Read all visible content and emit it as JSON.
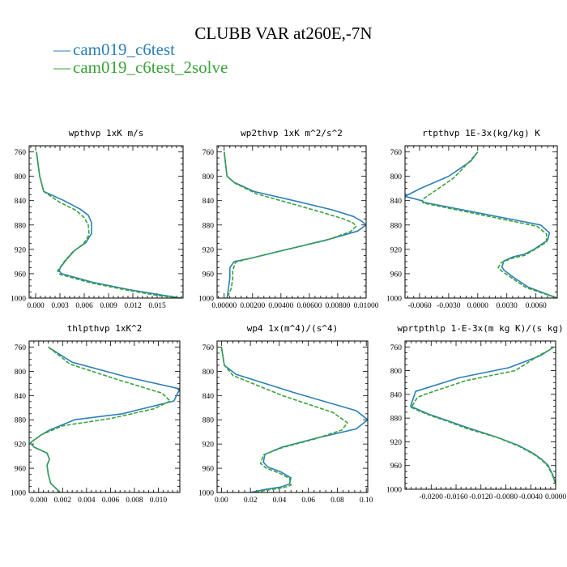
{
  "figure": {
    "title": "CLUBB VAR at260E,-7N",
    "legend": [
      {
        "name": "cam019_c6test",
        "color": "#2c7fb8"
      },
      {
        "name": "cam019_c6test_2solve",
        "color": "#3aa33a"
      }
    ]
  },
  "chart_data": [
    {
      "type": "line",
      "title": "wpthvp  1xK m/s",
      "ylim": [
        1000,
        750
      ],
      "xlim": [
        -0.0008,
        0.0182
      ],
      "y_ticks": [
        760,
        800,
        840,
        880,
        920,
        960,
        1000
      ],
      "x_ticks": [
        0.0,
        0.003,
        0.006,
        0.009,
        0.012,
        0.015
      ],
      "x_tick_labels": [
        "0.000",
        "0.003",
        "0.006",
        "0.009",
        "0.012",
        "0.015"
      ],
      "series": [
        {
          "name": "cam019_c6test",
          "x": [
            0.0001,
            0.0002,
            0.0003,
            0.0005,
            0.001,
            0.0035,
            0.0055,
            0.0065,
            0.0069,
            0.0069,
            0.0062,
            0.0048,
            0.0038,
            0.0031,
            0.0029,
            0.0032,
            0.007,
            0.0115,
            0.0155,
            0.018
          ],
          "y": [
            760,
            770,
            780,
            800,
            825,
            840,
            854,
            864,
            876,
            894,
            909,
            922,
            937,
            949,
            955,
            960,
            974,
            986,
            995,
            1000
          ]
        },
        {
          "name": "cam019_c6test_2solve",
          "x": [
            0.0001,
            0.0002,
            0.0003,
            0.0005,
            0.001,
            0.003,
            0.005,
            0.006,
            0.0065,
            0.0066,
            0.0059,
            0.0046,
            0.0036,
            0.003,
            0.0027,
            0.003,
            0.0068,
            0.0113,
            0.0152,
            0.018
          ],
          "y": [
            760,
            770,
            780,
            800,
            825,
            843,
            856,
            868,
            880,
            896,
            911,
            924,
            939,
            950,
            955,
            961,
            975,
            987,
            996,
            1000
          ]
        }
      ]
    },
    {
      "type": "line",
      "title": "wp2thvp  1xK m^2/s^2",
      "ylim": [
        1000,
        750
      ],
      "xlim": [
        -0.0005,
        0.01
      ],
      "y_ticks": [
        760,
        800,
        840,
        880,
        920,
        960,
        1000
      ],
      "x_ticks": [
        0.0,
        0.002,
        0.004,
        0.006,
        0.008,
        0.01
      ],
      "x_tick_labels": [
        "0.00000",
        "0.00200",
        "0.00400",
        "0.00600",
        "0.00800",
        "0.01000"
      ],
      "series": [
        {
          "name": "cam019_c6test",
          "x": [
            0.0,
            0.0001,
            0.0002,
            0.0007,
            0.0021,
            0.0049,
            0.0076,
            0.0091,
            0.0097,
            0.01,
            0.0094,
            0.0073,
            0.0041,
            0.0018,
            0.0007,
            0.0004,
            0.0004,
            0.0003,
            0.0002
          ],
          "y": [
            760,
            780,
            800,
            810,
            825,
            840,
            855,
            866,
            874,
            880,
            890,
            904,
            922,
            935,
            940,
            950,
            966,
            985,
            1000
          ]
        },
        {
          "name": "cam019_c6test_2solve",
          "x": [
            0.0,
            0.0001,
            0.0002,
            0.0008,
            0.0023,
            0.0046,
            0.007,
            0.0084,
            0.0091,
            0.0093,
            0.0089,
            0.0072,
            0.0041,
            0.0018,
            0.0008,
            0.0006,
            0.0006,
            0.0005,
            0.0002
          ],
          "y": [
            760,
            780,
            800,
            812,
            829,
            844,
            860,
            870,
            877,
            882,
            891,
            905,
            922,
            935,
            941,
            955,
            968,
            984,
            1000
          ]
        }
      ]
    },
    {
      "type": "line",
      "title": "rtpthvp  1E-3x(kg/kg) K",
      "ylim": [
        1000,
        750
      ],
      "xlim": [
        -0.0075,
        0.0082
      ],
      "y_ticks": [
        760,
        800,
        840,
        880,
        920,
        960,
        1000
      ],
      "x_ticks": [
        -0.006,
        -0.003,
        0.0,
        0.003,
        0.006
      ],
      "x_tick_labels": [
        "-0.0060",
        "-0.0030",
        "0.0000",
        "0.0030",
        "0.0060"
      ],
      "series": [
        {
          "name": "cam019_c6test",
          "x": [
            0.0,
            -0.0007,
            -0.003,
            -0.0059,
            -0.0075,
            -0.0058,
            -0.0055,
            0.0065,
            0.0074,
            0.0072,
            0.0058,
            0.0048,
            0.0037,
            0.0027,
            0.0025,
            0.0027,
            0.0036,
            0.0052,
            0.0082
          ],
          "y": [
            760,
            775,
            800,
            820,
            833,
            840,
            843,
            880,
            893,
            905,
            920,
            928,
            932,
            939,
            949,
            954,
            965,
            982,
            1000
          ]
        },
        {
          "name": "cam019_c6test_2solve",
          "x": [
            0.0,
            -0.0008,
            -0.0025,
            -0.0045,
            -0.0057,
            -0.0057,
            -0.0056,
            0.0061,
            0.0071,
            0.0071,
            0.0058,
            0.0048,
            0.0035,
            0.0024,
            0.0021,
            0.0025,
            0.0034,
            0.005,
            0.0082
          ],
          "y": [
            760,
            775,
            803,
            825,
            838,
            842,
            844,
            882,
            895,
            908,
            921,
            930,
            935,
            942,
            950,
            956,
            966,
            983,
            1000
          ]
        }
      ]
    },
    {
      "type": "line",
      "title": "thlpthvp  1xK^2",
      "ylim": [
        1000,
        750
      ],
      "xlim": [
        -0.0008,
        0.0118
      ],
      "y_ticks": [
        760,
        800,
        840,
        880,
        920,
        960,
        1000
      ],
      "x_ticks": [
        0.0,
        0.002,
        0.004,
        0.006,
        0.008,
        0.01
      ],
      "x_tick_labels": [
        "0.000",
        "0.002",
        "0.004",
        "0.006",
        "0.008",
        "0.010"
      ],
      "series": [
        {
          "name": "cam019_c6test",
          "x": [
            0.0008,
            0.0015,
            0.0028,
            0.0075,
            0.0118,
            0.0113,
            0.007,
            0.003,
            0.0009,
            0.0002,
            -0.0007,
            -0.0004,
            0.0007,
            0.0009,
            0.0007,
            0.0008,
            0.001,
            0.0018
          ],
          "y": [
            760,
            769,
            785,
            810,
            829,
            849,
            870,
            880,
            897,
            905,
            918,
            925,
            935,
            945,
            955,
            970,
            985,
            1000
          ]
        },
        {
          "name": "cam019_c6test_2solve",
          "x": [
            0.0008,
            0.0014,
            0.0026,
            0.0068,
            0.0103,
            0.011,
            0.0096,
            0.006,
            0.002,
            0.0002,
            -0.0007,
            -0.0004,
            0.0007,
            0.0009,
            0.0007,
            0.0008,
            0.001,
            0.0018
          ],
          "y": [
            760,
            769,
            788,
            815,
            836,
            849,
            862,
            878,
            890,
            905,
            918,
            925,
            935,
            945,
            955,
            970,
            985,
            1000
          ]
        }
      ]
    },
    {
      "type": "line",
      "title": "wp4  1x(m^4)/(s^4)",
      "ylim": [
        1000,
        750
      ],
      "xlim": [
        -0.003,
        0.101
      ],
      "y_ticks": [
        760,
        800,
        840,
        880,
        920,
        960,
        1000
      ],
      "x_ticks": [
        0.0,
        0.02,
        0.04,
        0.06,
        0.08,
        0.1
      ],
      "x_tick_labels": [
        "0.00",
        "0.02",
        "0.04",
        "0.06",
        "0.08",
        "0.10"
      ],
      "series": [
        {
          "name": "cam019_c6test",
          "x": [
            0.0,
            0.001,
            0.002,
            0.01,
            0.05,
            0.093,
            0.101,
            0.093,
            0.066,
            0.042,
            0.03,
            0.029,
            0.032,
            0.041,
            0.048,
            0.047,
            0.041,
            0.03,
            0.02
          ],
          "y": [
            760,
            775,
            790,
            805,
            835,
            865,
            880,
            895,
            910,
            925,
            937,
            950,
            958,
            966,
            976,
            986,
            991,
            995,
            1000
          ]
        },
        {
          "name": "cam019_c6test_2solve",
          "x": [
            0.0,
            0.001,
            0.002,
            0.008,
            0.042,
            0.077,
            0.087,
            0.083,
            0.064,
            0.042,
            0.029,
            0.027,
            0.031,
            0.04,
            0.047,
            0.048,
            0.043,
            0.032,
            0.022
          ],
          "y": [
            760,
            775,
            790,
            807,
            840,
            868,
            885,
            897,
            912,
            926,
            938,
            952,
            960,
            968,
            977,
            988,
            992,
            996,
            1000
          ]
        }
      ]
    },
    {
      "type": "line",
      "title": "wprtpthlp  1-E-3x(m kg K)/(s kg)",
      "ylim": [
        1000,
        750
      ],
      "xlim": [
        -0.0242,
        0.0
      ],
      "y_ticks": [
        760,
        800,
        840,
        880,
        920,
        960,
        1000
      ],
      "x_ticks": [
        -0.02,
        -0.016,
        -0.012,
        -0.008,
        -0.004,
        0.0
      ],
      "x_tick_labels": [
        "-0.0200",
        "-0.0160",
        "-0.0120",
        "-0.0080",
        "-0.0040",
        "0.0000"
      ],
      "series": [
        {
          "name": "cam019_c6test",
          "x": [
            -0.0003,
            -0.001,
            -0.0025,
            -0.0075,
            -0.0155,
            -0.0225,
            -0.0233,
            -0.022,
            -0.0205,
            -0.018,
            -0.0145,
            -0.0095,
            -0.006,
            -0.0035,
            -0.0022,
            -0.0012,
            -0.0005,
            0.0
          ],
          "y": [
            760,
            765,
            775,
            795,
            812,
            835,
            860,
            866,
            873,
            882,
            895,
            912,
            926,
            940,
            950,
            960,
            975,
            990
          ]
        },
        {
          "name": "cam019_c6test_2solve",
          "x": [
            -0.0003,
            -0.001,
            -0.0028,
            -0.0065,
            -0.0145,
            -0.021,
            -0.0222,
            -0.0232,
            -0.0215,
            -0.0195,
            -0.0175,
            -0.0142,
            -0.0093,
            -0.0058,
            -0.0034,
            -0.0021,
            -0.0012,
            -0.0005,
            0.0
          ],
          "y": [
            760,
            765,
            775,
            800,
            817,
            840,
            845,
            862,
            870,
            878,
            885,
            898,
            913,
            928,
            942,
            952,
            962,
            977,
            992
          ]
        }
      ]
    }
  ]
}
